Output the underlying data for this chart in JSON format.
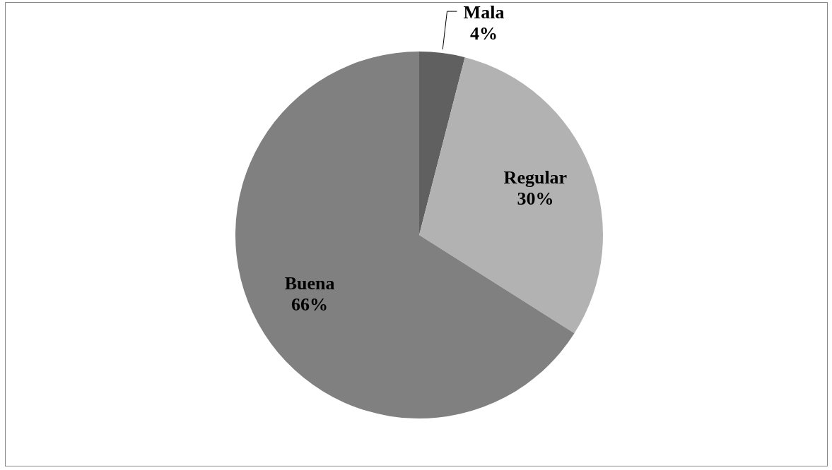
{
  "chart_data": {
    "type": "pie",
    "categories": [
      "Mala",
      "Regular",
      "Buena"
    ],
    "values": [
      4,
      30,
      66
    ],
    "colors": [
      "#606060",
      "#b2b2b2",
      "#808080"
    ],
    "value_labels": [
      "4%",
      "30%",
      "66%"
    ],
    "legend": false
  }
}
